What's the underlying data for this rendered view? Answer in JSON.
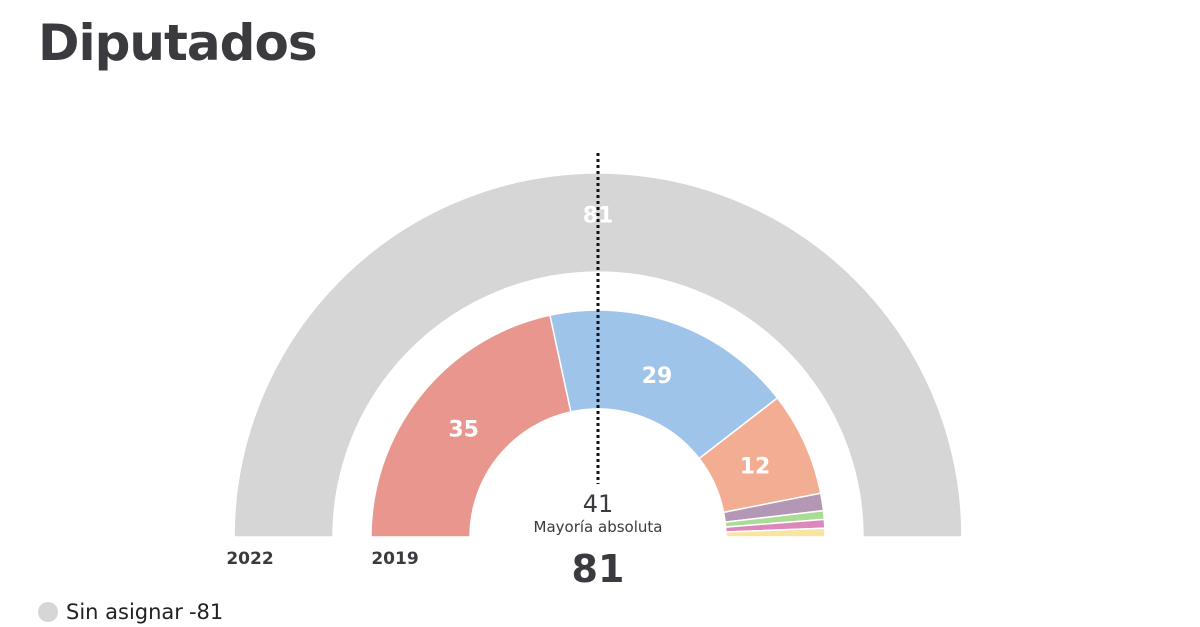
{
  "page": {
    "title": "Diputados"
  },
  "chart_data": {
    "type": "pie",
    "style": "parliament-semicircle",
    "total_seats": 81,
    "majority_seats": 41,
    "majority_label": "Mayoría absoluta",
    "total_label": "81",
    "rings": [
      {
        "label": "2022",
        "segments": [
          {
            "name": "Sin asignar",
            "seats": 81,
            "color": "#d6d6d6",
            "label": "81"
          }
        ]
      },
      {
        "label": "2019",
        "segments": [
          {
            "seats": 35,
            "color": "#e8968e",
            "label": "35"
          },
          {
            "seats": 29,
            "color": "#9fc4ea",
            "label": "29"
          },
          {
            "seats": 12,
            "color": "#f2ad92",
            "label": "12"
          },
          {
            "seats": 2,
            "color": "#b397b5",
            "label": ""
          },
          {
            "seats": 1,
            "color": "#a9dc94",
            "label": ""
          },
          {
            "seats": 1,
            "color": "#dd88bd",
            "label": ""
          },
          {
            "seats": 1,
            "color": "#f8e5a2",
            "label": ""
          }
        ]
      }
    ]
  },
  "legend": {
    "items": [
      {
        "name": "Sin asignar",
        "value": "-81",
        "color": "#d6d6d6"
      }
    ]
  }
}
